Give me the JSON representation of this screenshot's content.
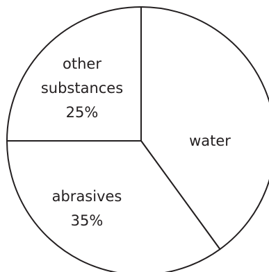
{
  "chart_data": {
    "type": "pie",
    "title": "",
    "slices": [
      {
        "label": "water",
        "value": null,
        "value_label": ""
      },
      {
        "label": "abrasives",
        "value": 35,
        "value_label": "35%"
      },
      {
        "label": "other substances",
        "value": 25,
        "value_label": "25%"
      }
    ],
    "inferred_values": {
      "water": 40
    },
    "colors": {
      "fill": "#ffffff",
      "stroke": "#231f20",
      "text": "#231f20"
    }
  },
  "labels": {
    "water": "water",
    "abrasives": "abrasives",
    "abrasives_pct": "35%",
    "other_line1": "other",
    "other_line2": "substances",
    "other_pct": "25%"
  }
}
